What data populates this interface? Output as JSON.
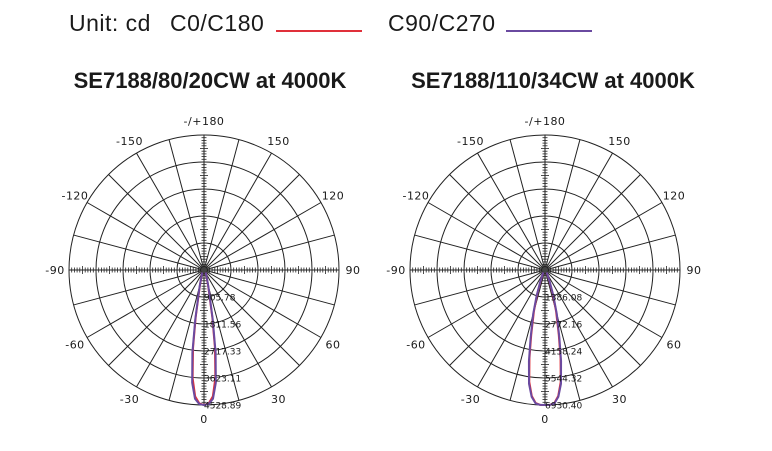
{
  "legend": {
    "unit_label": "Unit: cd",
    "c0_label": "C0/C180",
    "c90_label": "C90/C270",
    "c0_color": "#e0303a",
    "c90_color": "#6a4aa0"
  },
  "chart_data": [
    {
      "type": "polar",
      "title": "SE7188/80/20CW at 4000K",
      "angle_labels": [
        "-/+180",
        "150",
        "120",
        "90",
        "60",
        "30",
        "0",
        "-30",
        "-60",
        "-90",
        "-120",
        "-150"
      ],
      "radial_tick_labels": [
        "905.78",
        "1811.56",
        "2717.33",
        "3623.11",
        "4528.89"
      ],
      "rmax": 4528.89,
      "series": [
        {
          "name": "C0/C180",
          "angles": [
            -90,
            -60,
            -40,
            -30,
            -20,
            -15,
            -12,
            -10,
            -8,
            -6,
            -4,
            -2,
            0,
            2,
            4,
            6,
            8,
            10,
            12,
            15,
            20,
            30,
            40,
            60,
            90
          ],
          "values": [
            0,
            20,
            60,
            120,
            260,
            520,
            880,
            1600,
            2650,
            3650,
            4250,
            4480,
            4529,
            4480,
            4250,
            3650,
            2650,
            1600,
            880,
            520,
            260,
            120,
            60,
            20,
            0
          ]
        },
        {
          "name": "C90/C270",
          "angles": [
            -90,
            -60,
            -40,
            -30,
            -20,
            -15,
            -12,
            -10,
            -8,
            -6,
            -4,
            -2,
            0,
            2,
            4,
            6,
            8,
            10,
            12,
            15,
            20,
            30,
            40,
            60,
            90
          ],
          "values": [
            0,
            20,
            60,
            120,
            270,
            560,
            950,
            1700,
            2800,
            3800,
            4330,
            4500,
            4529,
            4500,
            4330,
            3800,
            2800,
            1700,
            950,
            560,
            270,
            120,
            60,
            20,
            0
          ]
        }
      ]
    },
    {
      "type": "polar",
      "title": "SE7188/110/34CW at 4000K",
      "angle_labels": [
        "-/+180",
        "150",
        "120",
        "90",
        "60",
        "30",
        "0",
        "-30",
        "-60",
        "-90",
        "-120",
        "-150"
      ],
      "radial_tick_labels": [
        "1386.08",
        "2772.16",
        "4158.24",
        "5544.32",
        "6930.40"
      ],
      "rmax": 6930.4,
      "series": [
        {
          "name": "C0/C180",
          "angles": [
            -90,
            -60,
            -40,
            -30,
            -22,
            -18,
            -15,
            -12,
            -10,
            -8,
            -6,
            -4,
            -2,
            0,
            2,
            4,
            6,
            8,
            10,
            12,
            15,
            18,
            22,
            30,
            40,
            60,
            90
          ],
          "values": [
            0,
            30,
            90,
            200,
            600,
            1300,
            2200,
            3400,
            4600,
            5800,
            6500,
            6850,
            6930,
            6930,
            6930,
            6850,
            6500,
            5800,
            4600,
            3400,
            2200,
            1300,
            600,
            200,
            90,
            30,
            0
          ]
        },
        {
          "name": "C90/C270",
          "angles": [
            -90,
            -60,
            -40,
            -30,
            -22,
            -18,
            -15,
            -12,
            -10,
            -8,
            -6,
            -4,
            -2,
            0,
            2,
            4,
            6,
            8,
            10,
            12,
            15,
            18,
            22,
            30,
            40,
            60,
            90
          ],
          "values": [
            0,
            30,
            100,
            220,
            650,
            1400,
            2350,
            3550,
            4750,
            5900,
            6550,
            6870,
            6930,
            6930,
            6930,
            6870,
            6550,
            5900,
            4750,
            3550,
            2350,
            1400,
            650,
            220,
            100,
            30,
            0
          ]
        }
      ]
    }
  ]
}
